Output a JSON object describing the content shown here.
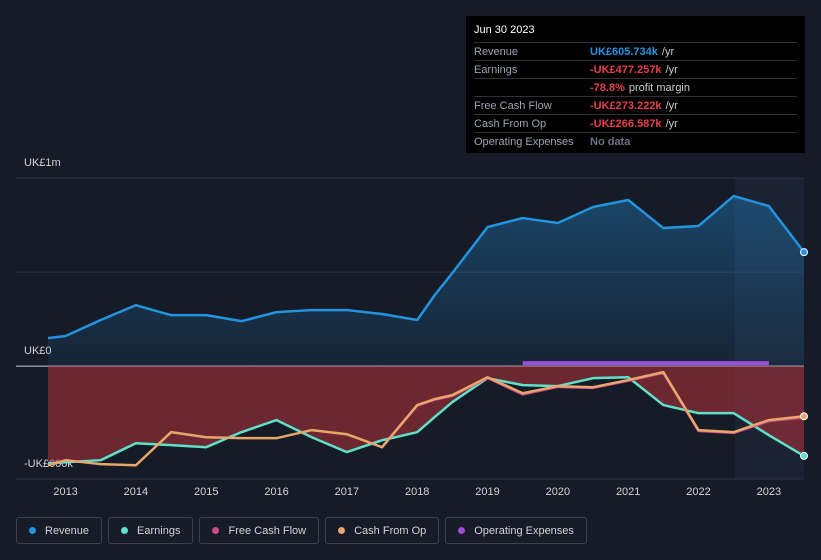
{
  "tooltip": {
    "date": "Jun 30 2023",
    "rows": [
      {
        "label": "Revenue",
        "value": "UK£605.734k",
        "unit": "/yr",
        "color": "#2394df"
      },
      {
        "label": "Earnings",
        "value": "-UK£477.257k",
        "unit": "/yr",
        "color": "#e5404a"
      },
      {
        "value": "-78.8%",
        "unit": "profit margin",
        "color": "#e5404a"
      },
      {
        "label": "Free Cash Flow",
        "value": "-UK£273.222k",
        "unit": "/yr",
        "color": "#e5404a"
      },
      {
        "label": "Cash From Op",
        "value": "-UK£266.587k",
        "unit": "/yr",
        "color": "#e5404a"
      },
      {
        "label": "Operating Expenses",
        "value": "No data",
        "color": "#6b7280"
      }
    ]
  },
  "chart_data": {
    "type": "line",
    "x": [
      2012.75,
      2013,
      2013.5,
      2014,
      2014.5,
      2015,
      2015.5,
      2016,
      2016.5,
      2017,
      2017.5,
      2018,
      2018.25,
      2018.5,
      2019,
      2019.5,
      2020,
      2020.5,
      2021,
      2021.5,
      2022,
      2022.5,
      2023,
      2023.5
    ],
    "xlim": [
      2012.75,
      2023.5
    ],
    "xticks": [
      2013,
      2014,
      2015,
      2016,
      2017,
      2018,
      2019,
      2020,
      2021,
      2022,
      2023
    ],
    "ylim": [
      -600000,
      1000000
    ],
    "yticks": [
      {
        "value": 1000000,
        "label": "UK£1m"
      },
      {
        "value": 0,
        "label": "UK£0"
      },
      {
        "value": -600000,
        "label": "-UK£600k"
      }
    ],
    "series": [
      {
        "name": "Revenue",
        "color": "#2394df",
        "area": true,
        "values": [
          149000,
          160000,
          245000,
          324000,
          271000,
          271000,
          239000,
          287000,
          298000,
          298000,
          277000,
          245000,
          378000,
          495000,
          739000,
          787000,
          761000,
          846000,
          883000,
          734000,
          745000,
          904000,
          851000,
          605734
        ]
      },
      {
        "name": "Earnings",
        "color": "#5ee0c9",
        "area": true,
        "values": [
          -516000,
          -511000,
          -500000,
          -410000,
          -420000,
          -431000,
          -351000,
          -287000,
          -378000,
          -457000,
          -394000,
          -351000,
          -270000,
          -191000,
          -64000,
          -101000,
          -106000,
          -64000,
          -59000,
          -207000,
          -250000,
          -250000,
          -367000,
          -477257
        ]
      },
      {
        "name": "Free Cash Flow",
        "color": "#d2468a",
        "values": [
          null,
          null,
          null,
          null,
          null,
          null,
          null,
          null,
          null,
          null,
          -431000,
          -210000,
          -178000,
          -158000,
          -63000,
          -150000,
          -110000,
          -116000,
          -78000,
          -36000,
          -345000,
          -355000,
          -292000,
          -273222
        ]
      },
      {
        "name": "Cash From Op",
        "color": "#e8a66a",
        "values": [
          -527000,
          -500000,
          -521000,
          -527000,
          -351000,
          -378000,
          -383000,
          -383000,
          -340000,
          -362000,
          -431000,
          -207000,
          -175000,
          -154000,
          -59000,
          -144000,
          -106000,
          -112000,
          -74000,
          -32000,
          -340000,
          -351000,
          -287000,
          -266587
        ]
      },
      {
        "name": "Operating Expenses",
        "color": "#9b4dd9",
        "values": [
          null,
          null,
          null,
          null,
          null,
          null,
          null,
          null,
          null,
          null,
          null,
          null,
          null,
          null,
          null,
          16000,
          16000,
          16000,
          16000,
          16000,
          16000,
          16000,
          16000,
          null
        ]
      }
    ]
  }
}
